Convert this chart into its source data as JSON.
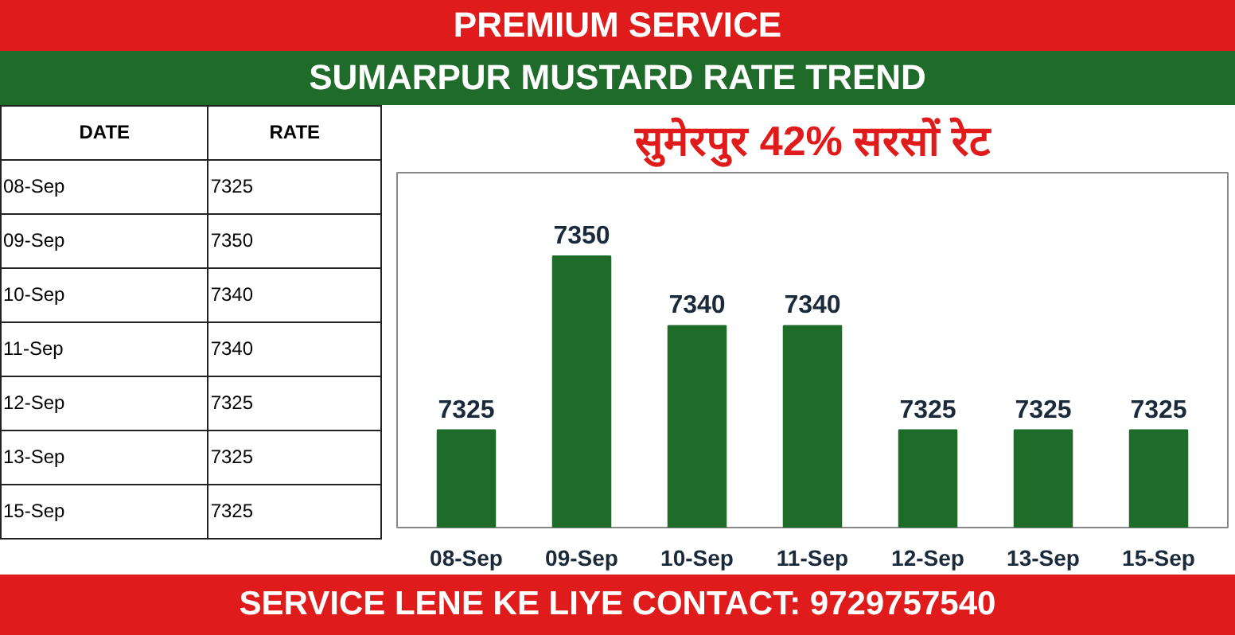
{
  "chart_data": {
    "type": "bar",
    "title": "सुमेरपुर 42% सरसों रेट",
    "subtitle": "SUMARPUR MUSTARD RATE TREND",
    "annotations": [
      "PREMIUM SERVICE",
      "DATE",
      "RATE",
      "SERVICE LENE KE LIYE CONTACT: 9729757540"
    ],
    "categories": [
      "08-Sep",
      "09-Sep",
      "10-Sep",
      "11-Sep",
      "12-Sep",
      "13-Sep",
      "15-Sep"
    ],
    "values": [
      7325,
      7350,
      7340,
      7340,
      7325,
      7325,
      7325
    ],
    "value_labels": [
      "7325",
      "7350",
      "7340",
      "7340",
      "7325",
      "7325",
      "7325"
    ],
    "color": "#1e6b2a",
    "ylim": [
      7311,
      7362
    ],
    "tick_labels": "x",
    "grid": false
  }
}
